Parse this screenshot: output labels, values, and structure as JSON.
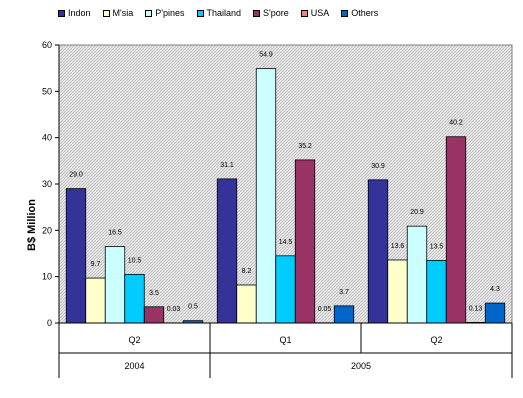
{
  "chart_data": {
    "type": "bar",
    "ylabel": "B$ Million",
    "ylim": [
      0,
      60
    ],
    "yticks": [
      0,
      10,
      20,
      30,
      40,
      50,
      60
    ],
    "groups": [
      {
        "quarter": "Q2",
        "year": "2004"
      },
      {
        "quarter": "Q1",
        "year": "2005"
      },
      {
        "quarter": "Q2",
        "year": "2005"
      }
    ],
    "year_labels": [
      "2004",
      "2005"
    ],
    "legend_position": "top",
    "series": [
      {
        "name": "Indon",
        "color": "#333399",
        "values": [
          29.0,
          31.1,
          30.9
        ],
        "labels": [
          "29.0",
          "31.1",
          "30.9"
        ]
      },
      {
        "name": "M'sia",
        "color": "#ffffcc",
        "values": [
          9.7,
          8.2,
          13.6
        ],
        "labels": [
          "9.7",
          "8.2",
          "13.6"
        ]
      },
      {
        "name": "P'pines",
        "color": "#ccffff",
        "values": [
          16.5,
          54.9,
          20.9
        ],
        "labels": [
          "16.5",
          "54.9",
          "20.9"
        ]
      },
      {
        "name": "Thailand",
        "color": "#00ccff",
        "values": [
          10.5,
          14.5,
          13.5
        ],
        "labels": [
          "10.5",
          "14.5",
          "13.5"
        ]
      },
      {
        "name": "S'pore",
        "color": "#993366",
        "values": [
          3.5,
          35.2,
          40.2
        ],
        "labels": [
          "3.5",
          "35.2",
          "40.2"
        ]
      },
      {
        "name": "USA",
        "color": "#ff8080",
        "values": [
          0.03,
          0.05,
          0.13
        ],
        "labels": [
          "0.03",
          "0.05",
          "0.13"
        ]
      },
      {
        "name": "Others",
        "color": "#0066cc",
        "values": [
          0.5,
          3.7,
          4.3
        ],
        "labels": [
          "0.5",
          "3.7",
          "4.3"
        ]
      }
    ],
    "grid": false,
    "plot_background": "#d4d4d4"
  }
}
